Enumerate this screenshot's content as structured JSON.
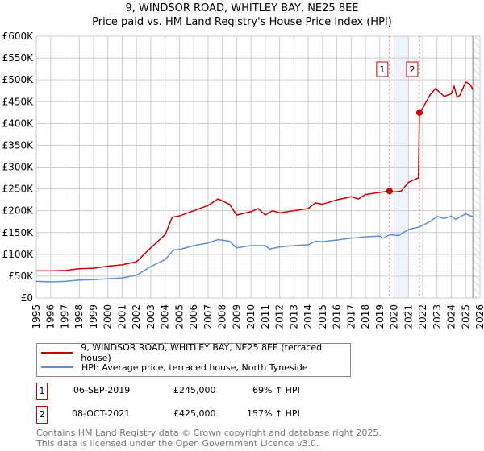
{
  "chart_data": {
    "type": "line",
    "title": "9, WINDSOR ROAD, WHITLEY BAY, NE25 8EE",
    "subtitle": "Price paid vs. HM Land Registry's House Price Index (HPI)",
    "xlim": [
      1995,
      2026
    ],
    "ylim": [
      0,
      600000
    ],
    "y_ticks": [
      0,
      50000,
      100000,
      150000,
      200000,
      250000,
      300000,
      350000,
      400000,
      450000,
      500000,
      550000,
      600000
    ],
    "y_tick_labels": [
      "£0",
      "£50K",
      "£100K",
      "£150K",
      "£200K",
      "£250K",
      "£300K",
      "£350K",
      "£400K",
      "£450K",
      "£500K",
      "£550K",
      "£600K"
    ],
    "x_ticks": [
      "1995",
      "1996",
      "1997",
      "1998",
      "1999",
      "2000",
      "2001",
      "2002",
      "2003",
      "2004",
      "2005",
      "2006",
      "2007",
      "2008",
      "2009",
      "2010",
      "2011",
      "2012",
      "2013",
      "2014",
      "2015",
      "2016",
      "2017",
      "2018",
      "2019",
      "2020",
      "2021",
      "2022",
      "2023",
      "2024",
      "2025",
      "2026"
    ],
    "grid": true,
    "shaded_range": [
      2020.0,
      2021.0
    ],
    "future_hatch_from": 2025.5,
    "series": [
      {
        "name": "9, WINDSOR ROAD, WHITLEY BAY, NE25 8EE (terraced house)",
        "color": "#cc0000",
        "x": [
          1995,
          1996,
          1997,
          1998,
          1999,
          2000,
          2001,
          2002,
          2003,
          2004,
          2004.5,
          2005,
          2006,
          2007,
          2007.7,
          2008.5,
          2009,
          2010,
          2010.5,
          2011,
          2011.5,
          2012,
          2013,
          2014,
          2014.5,
          2015,
          2016,
          2017,
          2017.5,
          2018,
          2019,
          2019.68,
          2020,
          2020.5,
          2021,
          2021.7,
          2021.77,
          2022,
          2022.5,
          2022.9,
          2023.5,
          2024,
          2024.2,
          2024.4,
          2024.6,
          2025,
          2025.3,
          2025.5
        ],
        "y": [
          62000,
          62000,
          63000,
          67000,
          68000,
          73000,
          76000,
          83000,
          115000,
          145000,
          185000,
          188000,
          200000,
          212000,
          227000,
          215000,
          190000,
          198000,
          205000,
          190000,
          200000,
          195000,
          200000,
          205000,
          218000,
          215000,
          225000,
          232000,
          227000,
          237000,
          242000,
          245000,
          243000,
          245000,
          265000,
          275000,
          425000,
          435000,
          465000,
          480000,
          462000,
          468000,
          485000,
          460000,
          465000,
          495000,
          490000,
          478000
        ]
      },
      {
        "name": "HPI: Average price, terraced house, North Tyneside",
        "color": "#5b8fd6",
        "x": [
          1995,
          1996,
          1997,
          1998,
          1999,
          2000,
          2001,
          2002,
          2003,
          2004,
          2004.6,
          2005,
          2006,
          2007,
          2007.7,
          2008.5,
          2009,
          2010,
          2011,
          2011.3,
          2012,
          2013,
          2014,
          2014.5,
          2015,
          2016,
          2017,
          2018,
          2019,
          2019.2,
          2019.7,
          2020.3,
          2021,
          2021.8,
          2022.5,
          2023,
          2023.5,
          2024,
          2024.3,
          2025,
          2025.5
        ],
        "y": [
          38000,
          37000,
          38000,
          41000,
          42000,
          44000,
          46000,
          52000,
          72000,
          88000,
          110000,
          111000,
          120000,
          126000,
          134000,
          130000,
          115000,
          120000,
          120000,
          112000,
          117000,
          120000,
          122000,
          130000,
          129000,
          133000,
          137000,
          140000,
          142000,
          137000,
          145000,
          143000,
          157000,
          163000,
          175000,
          187000,
          182000,
          188000,
          180000,
          193000,
          186000
        ]
      }
    ],
    "annotations": [
      {
        "label": "1",
        "x": 2019.68,
        "y": 245000
      },
      {
        "label": "2",
        "x": 2021.77,
        "y": 425000
      }
    ]
  },
  "transactions": [
    {
      "num": "1",
      "date": "06-SEP-2019",
      "price": "£245,000",
      "hpi": "69% ↑ HPI"
    },
    {
      "num": "2",
      "date": "08-OCT-2021",
      "price": "£425,000",
      "hpi": "157% ↑ HPI"
    }
  ],
  "footer": {
    "line1": "Contains HM Land Registry data © Crown copyright and database right 2025.",
    "line2": "This data is licensed under the Open Government Licence v3.0."
  }
}
